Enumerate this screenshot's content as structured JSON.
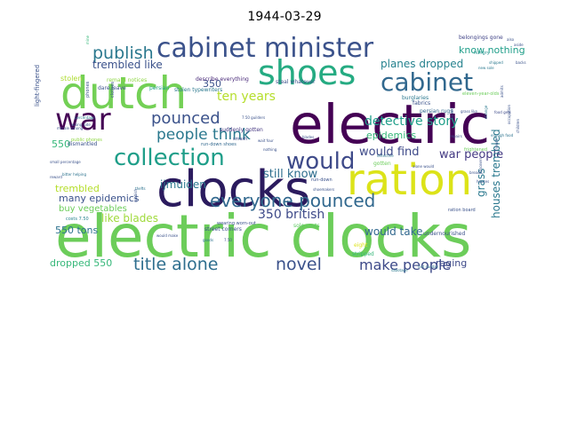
{
  "title": "1944-03-29",
  "words": [
    {
      "text": "electric clocks",
      "color": "#6ccd5a"
    },
    {
      "text": "electric",
      "color": "#440154"
    },
    {
      "text": "clocks",
      "color": "#2b1b5e"
    },
    {
      "text": "dutch",
      "color": "#73d055"
    },
    {
      "text": "cabinet minister",
      "color": "#3b528b"
    },
    {
      "text": "ration",
      "color": "#dce319"
    },
    {
      "text": "shoes",
      "color": "#25ab82"
    },
    {
      "text": "war",
      "color": "#440154"
    },
    {
      "text": "collection",
      "color": "#1f9e89"
    },
    {
      "text": "would",
      "color": "#3e4a89"
    },
    {
      "text": "cabinet",
      "color": "#31688e"
    },
    {
      "text": "publish",
      "color": "#2a788e"
    },
    {
      "text": "everyone pounced",
      "color": "#31688e"
    },
    {
      "text": "title alone",
      "color": "#2e6e8e"
    },
    {
      "text": "novel",
      "color": "#3b528b"
    },
    {
      "text": "make people",
      "color": "#3e4a89"
    },
    {
      "text": "pounced",
      "color": "#3b528b"
    },
    {
      "text": "people think",
      "color": "#2a788e"
    },
    {
      "text": "ten years",
      "color": "#b5de2b"
    },
    {
      "text": "detective story",
      "color": "#1f9e89"
    },
    {
      "text": "planes dropped",
      "color": "#26828e"
    },
    {
      "text": "trembled like",
      "color": "#3b528b"
    },
    {
      "text": "would find",
      "color": "#3e4a89"
    },
    {
      "text": "war people",
      "color": "#443a83"
    },
    {
      "text": "350 british",
      "color": "#3e4a89"
    },
    {
      "text": "still know",
      "color": "#2e6e8e"
    },
    {
      "text": "like blades",
      "color": "#9fda3a"
    },
    {
      "text": "many epidemics",
      "color": "#3b528b"
    },
    {
      "text": "550 tons",
      "color": "#2c728e"
    },
    {
      "text": "trembled",
      "color": "#b5de2b"
    },
    {
      "text": "dropped 550",
      "color": "#35b779"
    },
    {
      "text": "would take",
      "color": "#31688e"
    },
    {
      "text": "raging",
      "color": "#3e4a89"
    },
    {
      "text": "houses trembled",
      "color": "#2a788e"
    },
    {
      "text": "grass",
      "color": "#2a788e"
    },
    {
      "text": "know nothing",
      "color": "#1f9e89"
    },
    {
      "text": "ijmuiden",
      "color": "#2a788e"
    },
    {
      "text": "epidemics",
      "color": "#35b779"
    },
    {
      "text": "buy vegetables",
      "color": "#6ccd5a"
    },
    {
      "text": "350",
      "color": "#3b528b"
    },
    {
      "text": "550",
      "color": "#35b779"
    },
    {
      "text": "stolen",
      "color": "#addc30"
    },
    {
      "text": "light-fingered",
      "color": "#3b528b"
    },
    {
      "text": "remard notices",
      "color": "#8fd744"
    },
    {
      "text": "belongings gone",
      "color": "#414487"
    },
    {
      "text": "stolen typewriters",
      "color": "#2a788e"
    },
    {
      "text": "describe everything",
      "color": "#482878"
    },
    {
      "text": "steal whatever",
      "color": "#3b528b"
    },
    {
      "text": "burglaries",
      "color": "#2a788e"
    },
    {
      "text": "persian rugs",
      "color": "#31688e"
    },
    {
      "text": "suddenly gotten",
      "color": "#453781"
    },
    {
      "text": "run-down shoes",
      "color": "#31688e"
    },
    {
      "text": "street corners",
      "color": "#3b528b"
    },
    {
      "text": "undernourished",
      "color": "#3b528b"
    },
    {
      "text": "stripped",
      "color": "#35b779"
    },
    {
      "text": "eight",
      "color": "#dce319"
    },
    {
      "text": "sole costs",
      "color": "#5ec962"
    },
    {
      "text": "wearing worn-out",
      "color": "#3b528b"
    },
    {
      "text": "costs 7.50",
      "color": "#26828e"
    },
    {
      "text": "public phones",
      "color": "#8fd744"
    },
    {
      "text": "dismantled",
      "color": "#3b528b"
    },
    {
      "text": "smash",
      "color": "#3e4a89"
    },
    {
      "text": "fabrics",
      "color": "#3b528b"
    },
    {
      "text": "hungry",
      "color": "#21918c"
    },
    {
      "text": "dare leave",
      "color": "#3b528b"
    },
    {
      "text": "persian",
      "color": "#1fa188"
    },
    {
      "text": "gotten",
      "color": "#6ccd5a"
    },
    {
      "text": "would make",
      "color": "#3b528b"
    },
    {
      "text": "ration board",
      "color": "#3b528b"
    },
    {
      "text": "run-down",
      "color": "#3b528b"
    },
    {
      "text": "sabotage",
      "color": "#2a788e"
    },
    {
      "text": "last sunday",
      "color": "#2c728e"
    },
    {
      "text": "7.50 guilders",
      "color": "#3b528b"
    },
    {
      "text": "shoemakers",
      "color": "#3b528b"
    },
    {
      "text": "7.50",
      "color": "#3b528b"
    },
    {
      "text": "goods",
      "color": "#2c728e"
    },
    {
      "text": "morale among",
      "color": "#3b528b"
    },
    {
      "text": "food gets",
      "color": "#3e4a89"
    },
    {
      "text": "detective",
      "color": "#2c728e"
    },
    {
      "text": "alone would",
      "color": "#3b528b"
    },
    {
      "text": "new sole",
      "color": "#2a788e"
    },
    {
      "text": "frightened",
      "color": "#6ccd5a"
    },
    {
      "text": "eleven-year-olds",
      "color": "#6ccd5a"
    },
    {
      "text": "nothing",
      "color": "#3b528b"
    },
    {
      "text": "percentage",
      "color": "#2a788e"
    },
    {
      "text": "small percentage",
      "color": "#3b528b"
    },
    {
      "text": "wait four",
      "color": "#3b528b"
    },
    {
      "text": "blades",
      "color": "#3b528b"
    },
    {
      "text": "also",
      "color": "#3b528b"
    },
    {
      "text": "aside",
      "color": "#3b528b"
    },
    {
      "text": "phones",
      "color": "#3b528b"
    },
    {
      "text": "wrong side",
      "color": "#3b528b"
    },
    {
      "text": "bitter helping",
      "color": "#2c728e"
    },
    {
      "text": "reward",
      "color": "#3b528b"
    },
    {
      "text": "clothes",
      "color": "#3b528b"
    },
    {
      "text": "thefts",
      "color": "#2c728e"
    },
    {
      "text": "rubbish",
      "color": "#3b528b"
    },
    {
      "text": "shipped",
      "color": "#2a788e"
    },
    {
      "text": "backs",
      "color": "#3b528b"
    },
    {
      "text": "admits",
      "color": "#3b528b"
    },
    {
      "text": "mine",
      "color": "#35b779"
    },
    {
      "text": "repairs",
      "color": "#3b528b"
    },
    {
      "text": "grass like",
      "color": "#3b528b"
    },
    {
      "text": "prisoners",
      "color": "#3b528b"
    },
    {
      "text": "occupation",
      "color": "#3b528b"
    },
    {
      "text": "enough food",
      "color": "#2c728e"
    },
    {
      "text": "strange",
      "color": "#2a788e"
    },
    {
      "text": "locked",
      "color": "#3b528b"
    },
    {
      "text": "friends",
      "color": "#3b528b"
    },
    {
      "text": "children",
      "color": "#3b528b"
    },
    {
      "text": "bread",
      "color": "#3b528b"
    },
    {
      "text": "houses",
      "color": "#3b528b"
    }
  ]
}
